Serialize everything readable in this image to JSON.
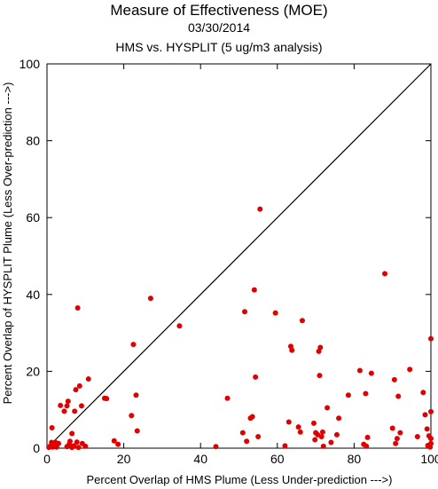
{
  "chart_data": {
    "type": "scatter",
    "title": "Measure of Effectiveness (MOE)",
    "subtitle": "03/30/2014",
    "subtitle2": "HMS vs. HYSPLIT  (5 ug/m3 analysis)",
    "xlabel": "Percent Overlap of HMS Plume (Less Under-prediction --->)",
    "ylabel": "Percent Overlap of HYSPLIT Plume (Less Over-prediction --->)",
    "xlim": [
      0,
      100
    ],
    "ylim": [
      0,
      100
    ],
    "x_ticks": [
      "0",
      "20",
      "40",
      "60",
      "80",
      "100"
    ],
    "y_ticks": [
      "0",
      "20",
      "40",
      "60",
      "80",
      "100"
    ],
    "grid": false,
    "reference_line": "diagonal y = x",
    "marker_color": "#e00000",
    "points": [
      [
        0.5,
        0.2
      ],
      [
        0.8,
        0.5
      ],
      [
        1.2,
        1.5
      ],
      [
        1.5,
        0.3
      ],
      [
        1.3,
        5.3
      ],
      [
        2.0,
        0.8
      ],
      [
        2.2,
        1.5
      ],
      [
        2.5,
        0.3
      ],
      [
        3.0,
        1.2
      ],
      [
        3.5,
        11.1
      ],
      [
        4.5,
        9.6
      ],
      [
        5.2,
        11.0
      ],
      [
        5.5,
        12.2
      ],
      [
        5.2,
        0.4
      ],
      [
        5.8,
        1.0
      ],
      [
        6.0,
        1.8
      ],
      [
        6.5,
        0.2
      ],
      [
        6.5,
        3.8
      ],
      [
        7.0,
        0.6
      ],
      [
        7.2,
        9.6
      ],
      [
        7.5,
        15.2
      ],
      [
        7.8,
        1.6
      ],
      [
        8.0,
        36.5
      ],
      [
        8.2,
        0.2
      ],
      [
        8.5,
        16.2
      ],
      [
        9.2,
        1.2
      ],
      [
        9.0,
        11.0
      ],
      [
        10.0,
        0.5
      ],
      [
        10.8,
        18.0
      ],
      [
        15.0,
        13.0
      ],
      [
        15.5,
        12.9
      ],
      [
        17.5,
        1.9
      ],
      [
        18.5,
        1.0
      ],
      [
        22.0,
        8.5
      ],
      [
        22.5,
        27.0
      ],
      [
        23.2,
        13.8
      ],
      [
        23.5,
        4.5
      ],
      [
        27.0,
        39.0
      ],
      [
        34.5,
        31.8
      ],
      [
        44.0,
        0.4
      ],
      [
        47.0,
        13.0
      ],
      [
        51.0,
        4.0
      ],
      [
        51.5,
        35.5
      ],
      [
        52.0,
        1.8
      ],
      [
        53.0,
        7.8
      ],
      [
        53.5,
        8.2
      ],
      [
        54.0,
        41.2
      ],
      [
        54.3,
        18.5
      ],
      [
        55.0,
        3.0
      ],
      [
        55.5,
        62.2
      ],
      [
        59.5,
        35.2
      ],
      [
        62.0,
        0.6
      ],
      [
        63.0,
        6.8
      ],
      [
        63.5,
        26.5
      ],
      [
        63.8,
        25.5
      ],
      [
        65.5,
        5.5
      ],
      [
        66.0,
        4.2
      ],
      [
        66.5,
        33.2
      ],
      [
        69.5,
        6.5
      ],
      [
        69.8,
        2.2
      ],
      [
        70.0,
        4.0
      ],
      [
        70.5,
        3.5
      ],
      [
        70.8,
        25.2
      ],
      [
        71.0,
        18.9
      ],
      [
        71.2,
        26.2
      ],
      [
        71.5,
        3.0
      ],
      [
        71.8,
        4.2
      ],
      [
        72.0,
        0.5
      ],
      [
        73.0,
        10.5
      ],
      [
        74.0,
        1.5
      ],
      [
        75.5,
        3.5
      ],
      [
        76.0,
        7.8
      ],
      [
        78.5,
        13.8
      ],
      [
        81.5,
        20.2
      ],
      [
        82.5,
        1.0
      ],
      [
        83.0,
        14.2
      ],
      [
        83.2,
        0.5
      ],
      [
        83.5,
        2.8
      ],
      [
        84.5,
        19.5
      ],
      [
        88.0,
        45.4
      ],
      [
        90.0,
        5.2
      ],
      [
        90.5,
        17.8
      ],
      [
        90.8,
        1.2
      ],
      [
        91.2,
        2.5
      ],
      [
        91.5,
        13.5
      ],
      [
        92.0,
        4.0
      ],
      [
        94.5,
        20.5
      ],
      [
        96.5,
        3.0
      ],
      [
        98.0,
        14.5
      ],
      [
        98.5,
        8.7
      ],
      [
        99.0,
        5.0
      ],
      [
        99.2,
        0.7
      ],
      [
        99.5,
        3.2
      ],
      [
        100.0,
        28.5
      ],
      [
        100.0,
        2.5
      ],
      [
        99.8,
        0.3
      ],
      [
        100.0,
        9.5
      ],
      [
        100.0,
        1.2
      ]
    ]
  }
}
